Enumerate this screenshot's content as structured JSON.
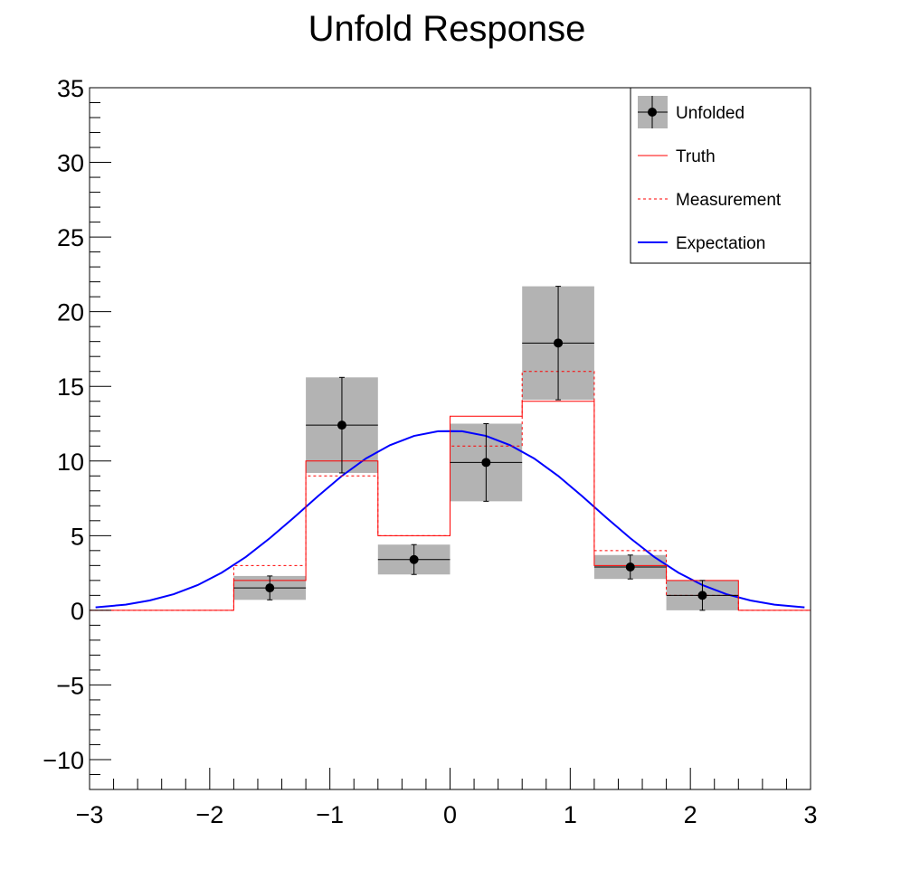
{
  "chart_data": {
    "type": "line",
    "title": "Unfold Response",
    "xlabel": "",
    "ylabel": "",
    "xlim": [
      -3,
      3
    ],
    "ylim": [
      -12,
      35
    ],
    "x_ticks": [
      -3,
      -2,
      -1,
      0,
      1,
      2,
      3
    ],
    "x_tick_labels": [
      "−3",
      "−2",
      "−1",
      "0",
      "1",
      "2",
      "3"
    ],
    "y_ticks": [
      -10,
      -5,
      0,
      5,
      10,
      15,
      20,
      25,
      30,
      35
    ],
    "y_tick_labels": [
      "−10",
      "−5",
      "0",
      "5",
      "10",
      "15",
      "20",
      "25",
      "30",
      "35"
    ],
    "grid": false,
    "legend_position": "top-right",
    "bin_edges": [
      -3.0,
      -2.4,
      -1.8,
      -1.2,
      -0.6,
      0.0,
      0.6,
      1.2,
      1.8,
      2.4,
      3.0
    ],
    "series": [
      {
        "name": "Unfolded",
        "kind": "points-with-error-band",
        "color": "#000000",
        "band_color": "#b3b3b3",
        "x": [
          -1.5,
          -0.9,
          -0.3,
          0.3,
          0.9,
          1.5,
          2.1
        ],
        "y": [
          1.5,
          12.4,
          3.4,
          9.9,
          17.9,
          2.9,
          1.0
        ],
        "y_err": [
          0.8,
          3.2,
          1.0,
          2.6,
          3.8,
          0.8,
          1.0
        ]
      },
      {
        "name": "Truth",
        "kind": "step",
        "color": "#ff0000",
        "values": [
          0,
          0,
          2,
          10,
          5,
          13,
          14,
          3,
          2,
          0
        ]
      },
      {
        "name": "Measurement",
        "kind": "step-dashed",
        "color": "#ff0000",
        "values": [
          0,
          0,
          3,
          9,
          5,
          11,
          16,
          4,
          1,
          0
        ]
      },
      {
        "name": "Expectation",
        "kind": "curve",
        "color": "#0000ff",
        "x": [
          -2.95,
          -2.7,
          -2.5,
          -2.3,
          -2.1,
          -1.9,
          -1.7,
          -1.5,
          -1.3,
          -1.1,
          -0.9,
          -0.7,
          -0.5,
          -0.3,
          -0.1,
          0.0,
          0.1,
          0.3,
          0.5,
          0.7,
          0.9,
          1.1,
          1.3,
          1.5,
          1.7,
          1.9,
          2.1,
          2.3,
          2.5,
          2.7,
          2.95
        ],
        "y": [
          0.2,
          0.38,
          0.66,
          1.08,
          1.69,
          2.52,
          3.57,
          4.83,
          6.21,
          7.64,
          9.0,
          10.17,
          11.06,
          11.68,
          11.99,
          12.0,
          11.99,
          11.68,
          11.06,
          10.17,
          9.0,
          7.64,
          6.21,
          4.83,
          3.57,
          2.52,
          1.69,
          1.08,
          0.66,
          0.38,
          0.2
        ]
      }
    ]
  }
}
